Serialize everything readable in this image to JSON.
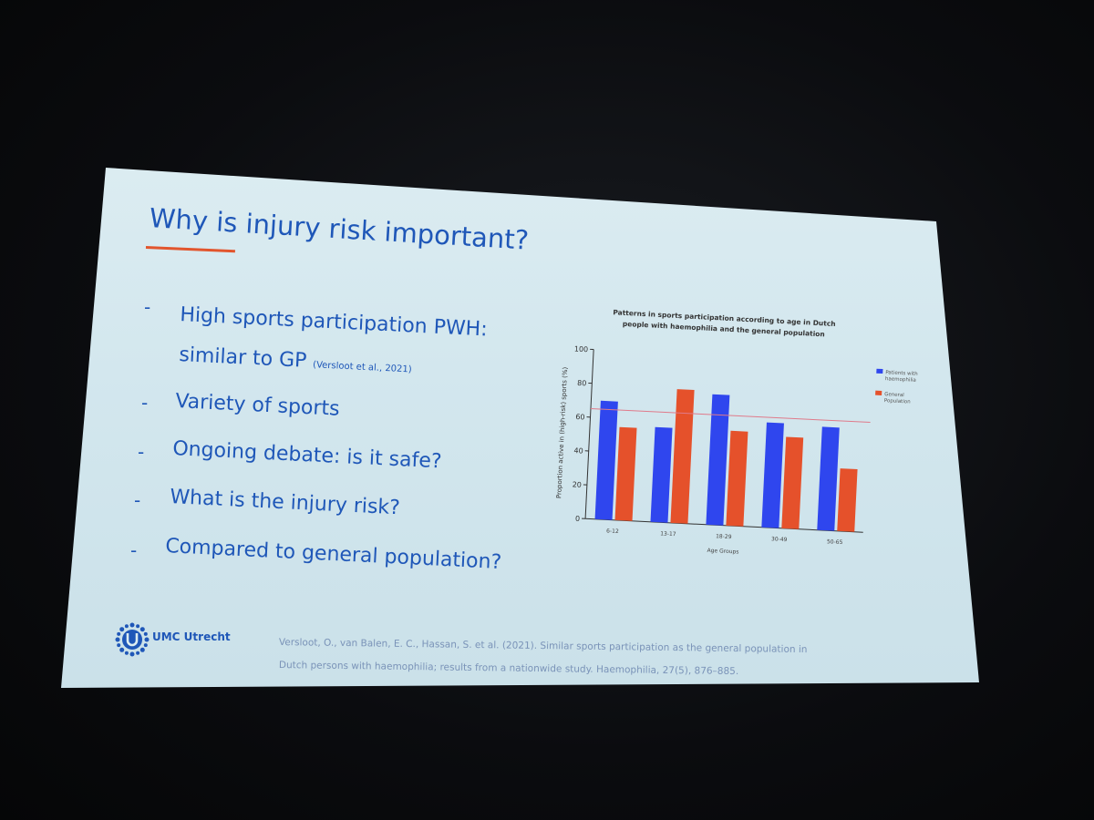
{
  "slide": {
    "title": "Why is injury risk important?",
    "bullets": [
      {
        "text": "High sports participation PWH:"
      },
      {
        "text": "similar to GP",
        "citation": "(Versloot et al., 2021)"
      },
      {
        "text": "Variety of sports"
      },
      {
        "text": "Ongoing debate: is it safe?"
      },
      {
        "text": "What is the injury risk?"
      },
      {
        "text": "Compared to general population?"
      }
    ],
    "dash": "-",
    "logo": {
      "text": "UMC Utrecht"
    },
    "reference": {
      "line1": "Versloot, O., van Balen, E. C., Hassan, S. et al. (2021). Similar sports participation as the general population in",
      "line2": "Dutch persons with haemophilia; results from a nationwide study. Haemophilia, 27(5), 876–885."
    }
  },
  "chart_data": {
    "type": "bar",
    "title_line1": "Patterns in sports participation according to age in Dutch",
    "title_line2": "people with haemophilia and the general population",
    "xlabel": "Age Groups",
    "ylabel": "Proportion active in (high-risk) sports (%)",
    "ylim": [
      0,
      100
    ],
    "yticks": [
      0,
      20,
      40,
      60,
      80,
      100
    ],
    "categories": [
      "6-12",
      "13-17",
      "18-29",
      "30-49",
      "50-65"
    ],
    "series": [
      {
        "name": "Patients with haemophilia",
        "color": "#2f46ee",
        "values": [
          70,
          56,
          77,
          62,
          61
        ]
      },
      {
        "name": "General Population",
        "color": "#e5512b",
        "values": [
          55,
          79,
          56,
          54,
          37
        ]
      }
    ],
    "reference_line": {
      "value": 65,
      "color": "#e07a8a"
    },
    "legend_position": "top-right",
    "grid": false
  }
}
